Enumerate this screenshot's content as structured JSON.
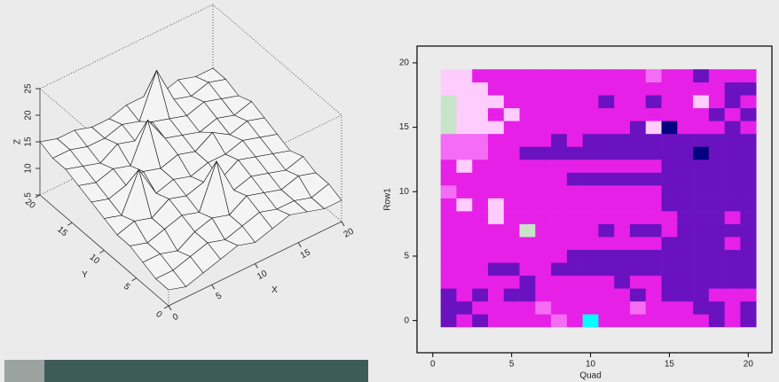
{
  "chart_data": [
    {
      "type": "surface",
      "xlabel": "X",
      "ylabel": "Y",
      "zlabel": "Z",
      "x": [
        0,
        2,
        4,
        6,
        8,
        10,
        12,
        14,
        16,
        18,
        20
      ],
      "y": [
        0,
        2,
        4,
        6,
        8,
        10,
        12,
        14,
        16,
        18,
        20
      ],
      "z": [
        [
          8,
          7,
          8,
          9,
          10,
          9,
          10,
          11,
          10,
          9,
          9
        ],
        [
          8,
          8,
          9,
          10,
          9,
          10,
          11,
          10,
          10,
          9,
          10
        ],
        [
          9,
          9,
          8,
          10,
          11,
          10,
          12,
          11,
          10,
          11,
          10
        ],
        [
          10,
          9,
          10,
          11,
          10,
          18,
          11,
          12,
          11,
          10,
          11
        ],
        [
          10,
          11,
          10,
          12,
          11,
          12,
          11,
          13,
          12,
          11,
          10
        ],
        [
          11,
          10,
          17,
          11,
          12,
          11,
          12,
          12,
          13,
          12,
          11
        ],
        [
          12,
          11,
          12,
          13,
          12,
          13,
          12,
          14,
          12,
          13,
          12
        ],
        [
          13,
          12,
          13,
          12,
          19,
          14,
          13,
          12,
          13,
          12,
          13
        ],
        [
          14,
          13,
          12,
          14,
          13,
          15,
          14,
          13,
          14,
          13,
          12
        ],
        [
          14,
          14,
          13,
          13,
          14,
          13,
          21,
          14,
          13,
          14,
          13
        ],
        [
          15,
          14,
          14,
          13,
          13,
          14,
          14,
          13,
          14,
          13,
          13
        ]
      ],
      "xlim": [
        0,
        20
      ],
      "ylim": [
        0,
        20
      ],
      "zlim": [
        5,
        25
      ],
      "xticks": [
        0,
        5,
        10,
        15,
        20
      ],
      "yticks": [
        0,
        5,
        10,
        15,
        20
      ],
      "zticks": [
        5,
        10,
        15,
        20,
        25
      ],
      "color": "#111111"
    },
    {
      "type": "heatmap",
      "xlabel": "Quad",
      "ylabel": "Row1",
      "x": [
        1,
        2,
        3,
        4,
        5,
        6,
        7,
        8,
        9,
        10,
        11,
        12,
        13,
        14,
        15,
        16,
        17,
        18,
        19,
        20
      ],
      "y": [
        0,
        1,
        2,
        3,
        4,
        5,
        6,
        7,
        8,
        9,
        10,
        11,
        12,
        13,
        14,
        15,
        16,
        17,
        18,
        19
      ],
      "z": [
        [
          2,
          1,
          2,
          1,
          1,
          1,
          1,
          6,
          1,
          4,
          1,
          1,
          1,
          1,
          1,
          1,
          1,
          2,
          1,
          2
        ],
        [
          2,
          2,
          1,
          1,
          1,
          1,
          6,
          1,
          1,
          1,
          1,
          1,
          6,
          1,
          1,
          1,
          2,
          2,
          1,
          2
        ],
        [
          2,
          1,
          2,
          1,
          2,
          2,
          1,
          1,
          1,
          1,
          1,
          1,
          2,
          1,
          2,
          2,
          2,
          1,
          1,
          1
        ],
        [
          1,
          1,
          1,
          1,
          1,
          2,
          1,
          1,
          1,
          1,
          1,
          2,
          1,
          1,
          2,
          2,
          2,
          2,
          2,
          2
        ],
        [
          1,
          1,
          1,
          2,
          2,
          1,
          1,
          2,
          2,
          2,
          2,
          2,
          2,
          2,
          2,
          2,
          2,
          2,
          2,
          2
        ],
        [
          1,
          1,
          1,
          1,
          1,
          1,
          1,
          1,
          2,
          2,
          2,
          2,
          2,
          2,
          2,
          2,
          2,
          2,
          2,
          2
        ],
        [
          1,
          1,
          1,
          1,
          1,
          1,
          1,
          1,
          1,
          1,
          1,
          1,
          1,
          1,
          2,
          2,
          2,
          2,
          1,
          2
        ],
        [
          1,
          1,
          1,
          1,
          1,
          5,
          1,
          1,
          1,
          1,
          2,
          1,
          2,
          2,
          1,
          2,
          2,
          2,
          2,
          2
        ],
        [
          1,
          1,
          1,
          0,
          1,
          1,
          1,
          1,
          1,
          1,
          1,
          1,
          1,
          1,
          1,
          2,
          2,
          2,
          1,
          2
        ],
        [
          1,
          0,
          1,
          0,
          1,
          1,
          1,
          1,
          1,
          1,
          1,
          1,
          1,
          1,
          2,
          2,
          2,
          2,
          2,
          2
        ],
        [
          6,
          1,
          1,
          1,
          1,
          1,
          1,
          1,
          1,
          1,
          1,
          1,
          1,
          1,
          2,
          2,
          2,
          2,
          2,
          2
        ],
        [
          1,
          1,
          1,
          1,
          1,
          1,
          1,
          1,
          2,
          2,
          2,
          2,
          2,
          2,
          2,
          2,
          2,
          2,
          2,
          2
        ],
        [
          1,
          0,
          1,
          1,
          1,
          1,
          1,
          1,
          1,
          1,
          1,
          1,
          1,
          1,
          2,
          2,
          2,
          2,
          2,
          2
        ],
        [
          6,
          6,
          6,
          1,
          1,
          2,
          2,
          2,
          2,
          2,
          2,
          2,
          2,
          2,
          2,
          2,
          3,
          2,
          2,
          2
        ],
        [
          6,
          6,
          6,
          1,
          1,
          1,
          1,
          2,
          1,
          2,
          2,
          2,
          2,
          2,
          2,
          2,
          2,
          2,
          2,
          2
        ],
        [
          5,
          0,
          0,
          0,
          1,
          1,
          1,
          1,
          1,
          1,
          1,
          1,
          2,
          0,
          3,
          1,
          1,
          1,
          2,
          1
        ],
        [
          5,
          0,
          0,
          1,
          0,
          1,
          1,
          1,
          1,
          1,
          1,
          1,
          1,
          1,
          1,
          1,
          1,
          2,
          1,
          2
        ],
        [
          5,
          0,
          0,
          0,
          1,
          1,
          1,
          1,
          1,
          1,
          2,
          1,
          1,
          2,
          1,
          1,
          0,
          1,
          2,
          1
        ],
        [
          0,
          0,
          0,
          1,
          1,
          1,
          1,
          1,
          1,
          1,
          1,
          1,
          1,
          1,
          1,
          1,
          1,
          1,
          2,
          2
        ],
        [
          0,
          0,
          1,
          1,
          1,
          1,
          1,
          1,
          1,
          1,
          1,
          1,
          1,
          6,
          1,
          1,
          2,
          1,
          1,
          1
        ]
      ],
      "palette": [
        "#ffccff",
        "#e620e6",
        "#6a12c0",
        "#000080",
        "#00ffff",
        "#c8e4c8",
        "#f56cf5"
      ],
      "xlim": [
        -1,
        21.5
      ],
      "ylim": [
        -2.5,
        21.3
      ],
      "xticks": [
        0,
        5,
        10,
        15,
        20
      ],
      "yticks": [
        0,
        5,
        10,
        15,
        20
      ]
    }
  ]
}
